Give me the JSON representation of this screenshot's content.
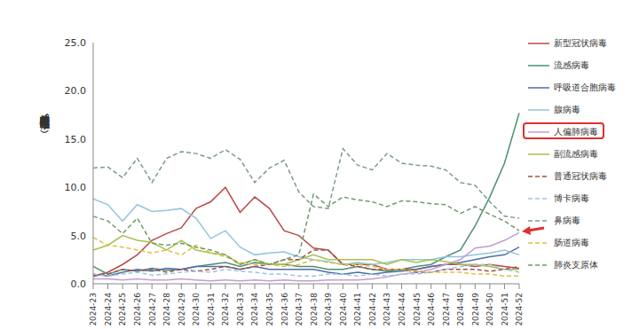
{
  "chart_data": {
    "type": "line",
    "y_label": "核酸检测阳性率（%）",
    "categories": [
      "2024-23",
      "2024-24",
      "2024-25",
      "2024-26",
      "2024-27",
      "2024-28",
      "2024-29",
      "2024-30",
      "2024-31",
      "2024-32",
      "2024-33",
      "2024-34",
      "2024-35",
      "2024-36",
      "2024-37",
      "2024-38",
      "2024-39",
      "2024-40",
      "2024-41",
      "2024-42",
      "2024-43",
      "2024-44",
      "2024-45",
      "2024-46",
      "2024-47",
      "2024-48",
      "2024-49",
      "2024-50",
      "2024-51",
      "2024-52"
    ],
    "ylim": [
      0,
      25
    ],
    "yticks": [
      {
        "value": 0,
        "label": "0.0"
      },
      {
        "value": 5,
        "label": "5.0"
      },
      {
        "value": 10,
        "label": "10.0"
      },
      {
        "value": 15,
        "label": "15.0"
      },
      {
        "value": 20,
        "label": "20.0"
      },
      {
        "value": 25,
        "label": "25.0"
      }
    ],
    "grid": false,
    "legend": "right",
    "series": [
      {
        "name": "新型冠状病毒",
        "color": "#b94a48",
        "line_style": "solid",
        "values": [
          0.8,
          1.2,
          2.0,
          3.0,
          4.5,
          5.2,
          5.8,
          7.8,
          8.5,
          10.0,
          7.4,
          9.0,
          7.8,
          5.5,
          5.0,
          3.7,
          3.5,
          2.0,
          2.0,
          2.0,
          1.5,
          1.5,
          1.5,
          1.8,
          2.0,
          2.0,
          1.8,
          2.0,
          1.8,
          1.6
        ]
      },
      {
        "name": "流感病毒",
        "color": "#4e8f72",
        "line_style": "solid",
        "values": [
          1.8,
          1.0,
          1.5,
          1.3,
          1.6,
          1.4,
          1.5,
          1.8,
          2.0,
          2.2,
          1.8,
          2.2,
          2.0,
          2.0,
          1.8,
          1.8,
          1.5,
          1.5,
          1.8,
          1.5,
          1.3,
          1.5,
          1.8,
          2.0,
          2.8,
          3.5,
          6.0,
          9.0,
          12.5,
          17.7
        ]
      },
      {
        "name": "呼吸道合胞病毒",
        "color": "#4f6fa8",
        "line_style": "solid",
        "values": [
          1.0,
          0.8,
          1.2,
          1.5,
          1.3,
          1.6,
          1.5,
          1.8,
          1.8,
          1.8,
          1.5,
          1.8,
          1.5,
          1.5,
          1.5,
          1.5,
          1.2,
          1.0,
          1.2,
          1.0,
          1.2,
          1.3,
          1.5,
          1.8,
          2.0,
          2.2,
          2.5,
          2.8,
          3.0,
          3.8
        ]
      },
      {
        "name": "腺病毒",
        "color": "#92c5de",
        "line_style": "solid",
        "values": [
          8.8,
          8.2,
          6.5,
          8.2,
          7.5,
          7.6,
          7.8,
          6.8,
          4.7,
          5.5,
          3.8,
          3.0,
          3.2,
          3.3,
          2.8,
          2.5,
          2.3,
          2.0,
          2.2,
          2.0,
          2.2,
          2.5,
          2.5,
          2.5,
          2.8,
          2.8,
          3.0,
          3.2,
          3.5,
          3.0
        ]
      },
      {
        "name": "人偏肺病毒",
        "color": "#c39bd3",
        "line_style": "solid",
        "values": [
          0.5,
          0.5,
          0.4,
          0.5,
          0.4,
          0.4,
          0.5,
          0.4,
          0.3,
          0.4,
          0.3,
          0.4,
          0.3,
          0.4,
          0.3,
          0.3,
          0.4,
          0.4,
          0.4,
          0.5,
          0.7,
          1.0,
          1.2,
          1.5,
          2.0,
          2.5,
          3.7,
          3.9,
          4.5,
          5.3
        ]
      },
      {
        "name": "副流感病毒",
        "color": "#a6c24a",
        "line_style": "solid",
        "values": [
          3.5,
          4.0,
          5.0,
          4.5,
          4.3,
          3.5,
          4.5,
          3.5,
          3.2,
          3.0,
          2.0,
          2.5,
          2.0,
          2.0,
          2.5,
          3.0,
          2.5,
          2.5,
          2.5,
          2.5,
          2.0,
          2.5,
          2.2,
          2.5,
          2.3,
          2.0,
          2.0,
          1.8,
          1.5,
          1.5
        ]
      },
      {
        "name": "普通冠状病毒",
        "color": "#a0504b",
        "line_style": "dashed",
        "values": [
          0.8,
          1.0,
          1.5,
          1.3,
          1.5,
          1.2,
          1.5,
          1.3,
          1.5,
          1.8,
          1.5,
          1.8,
          2.0,
          2.5,
          2.5,
          3.5,
          3.5,
          2.0,
          1.8,
          1.5,
          1.5,
          1.5,
          1.2,
          1.2,
          1.5,
          1.5,
          1.5,
          1.3,
          1.5,
          1.8
        ]
      },
      {
        "name": "博卡病毒",
        "color": "#9dc3e6",
        "line_style": "dashed",
        "values": [
          1.0,
          0.8,
          1.0,
          1.2,
          0.9,
          1.0,
          1.2,
          1.3,
          1.2,
          1.5,
          1.3,
          1.2,
          1.0,
          1.0,
          0.8,
          0.8,
          1.0,
          1.0,
          0.8,
          1.0,
          0.8,
          1.0,
          1.0,
          1.2,
          1.5,
          1.8,
          2.0,
          2.0,
          1.5,
          1.2
        ]
      },
      {
        "name": "鼻病毒",
        "color": "#7d9a96",
        "line_style": "dashed",
        "values": [
          12.0,
          12.1,
          11.0,
          13.0,
          10.5,
          13.0,
          13.7,
          13.5,
          13.0,
          13.9,
          12.9,
          10.5,
          12.0,
          12.8,
          9.5,
          8.0,
          7.8,
          14.0,
          12.3,
          11.8,
          13.5,
          12.5,
          12.3,
          12.2,
          11.8,
          10.5,
          10.2,
          8.5,
          7.0,
          6.8
        ]
      },
      {
        "name": "肠道病毒",
        "color": "#e0c040",
        "line_style": "dashed",
        "values": [
          4.8,
          4.0,
          3.8,
          3.5,
          3.2,
          3.5,
          3.0,
          4.0,
          3.2,
          2.8,
          2.2,
          2.0,
          2.0,
          1.8,
          2.0,
          2.5,
          2.2,
          2.0,
          2.0,
          1.8,
          1.5,
          1.5,
          1.3,
          1.2,
          1.2,
          1.2,
          1.0,
          1.0,
          0.8,
          0.8
        ]
      },
      {
        "name": "肺炎支原体",
        "color": "#6f9a6f",
        "line_style": "dashed",
        "values": [
          7.0,
          6.5,
          5.2,
          6.8,
          4.2,
          4.0,
          4.2,
          3.8,
          3.5,
          3.0,
          2.0,
          2.5,
          2.0,
          2.5,
          3.0,
          9.3,
          8.0,
          9.0,
          8.7,
          8.5,
          8.0,
          8.6,
          8.5,
          8.3,
          8.2,
          7.3,
          8.0,
          7.2,
          6.5,
          5.5
        ]
      }
    ]
  }
}
